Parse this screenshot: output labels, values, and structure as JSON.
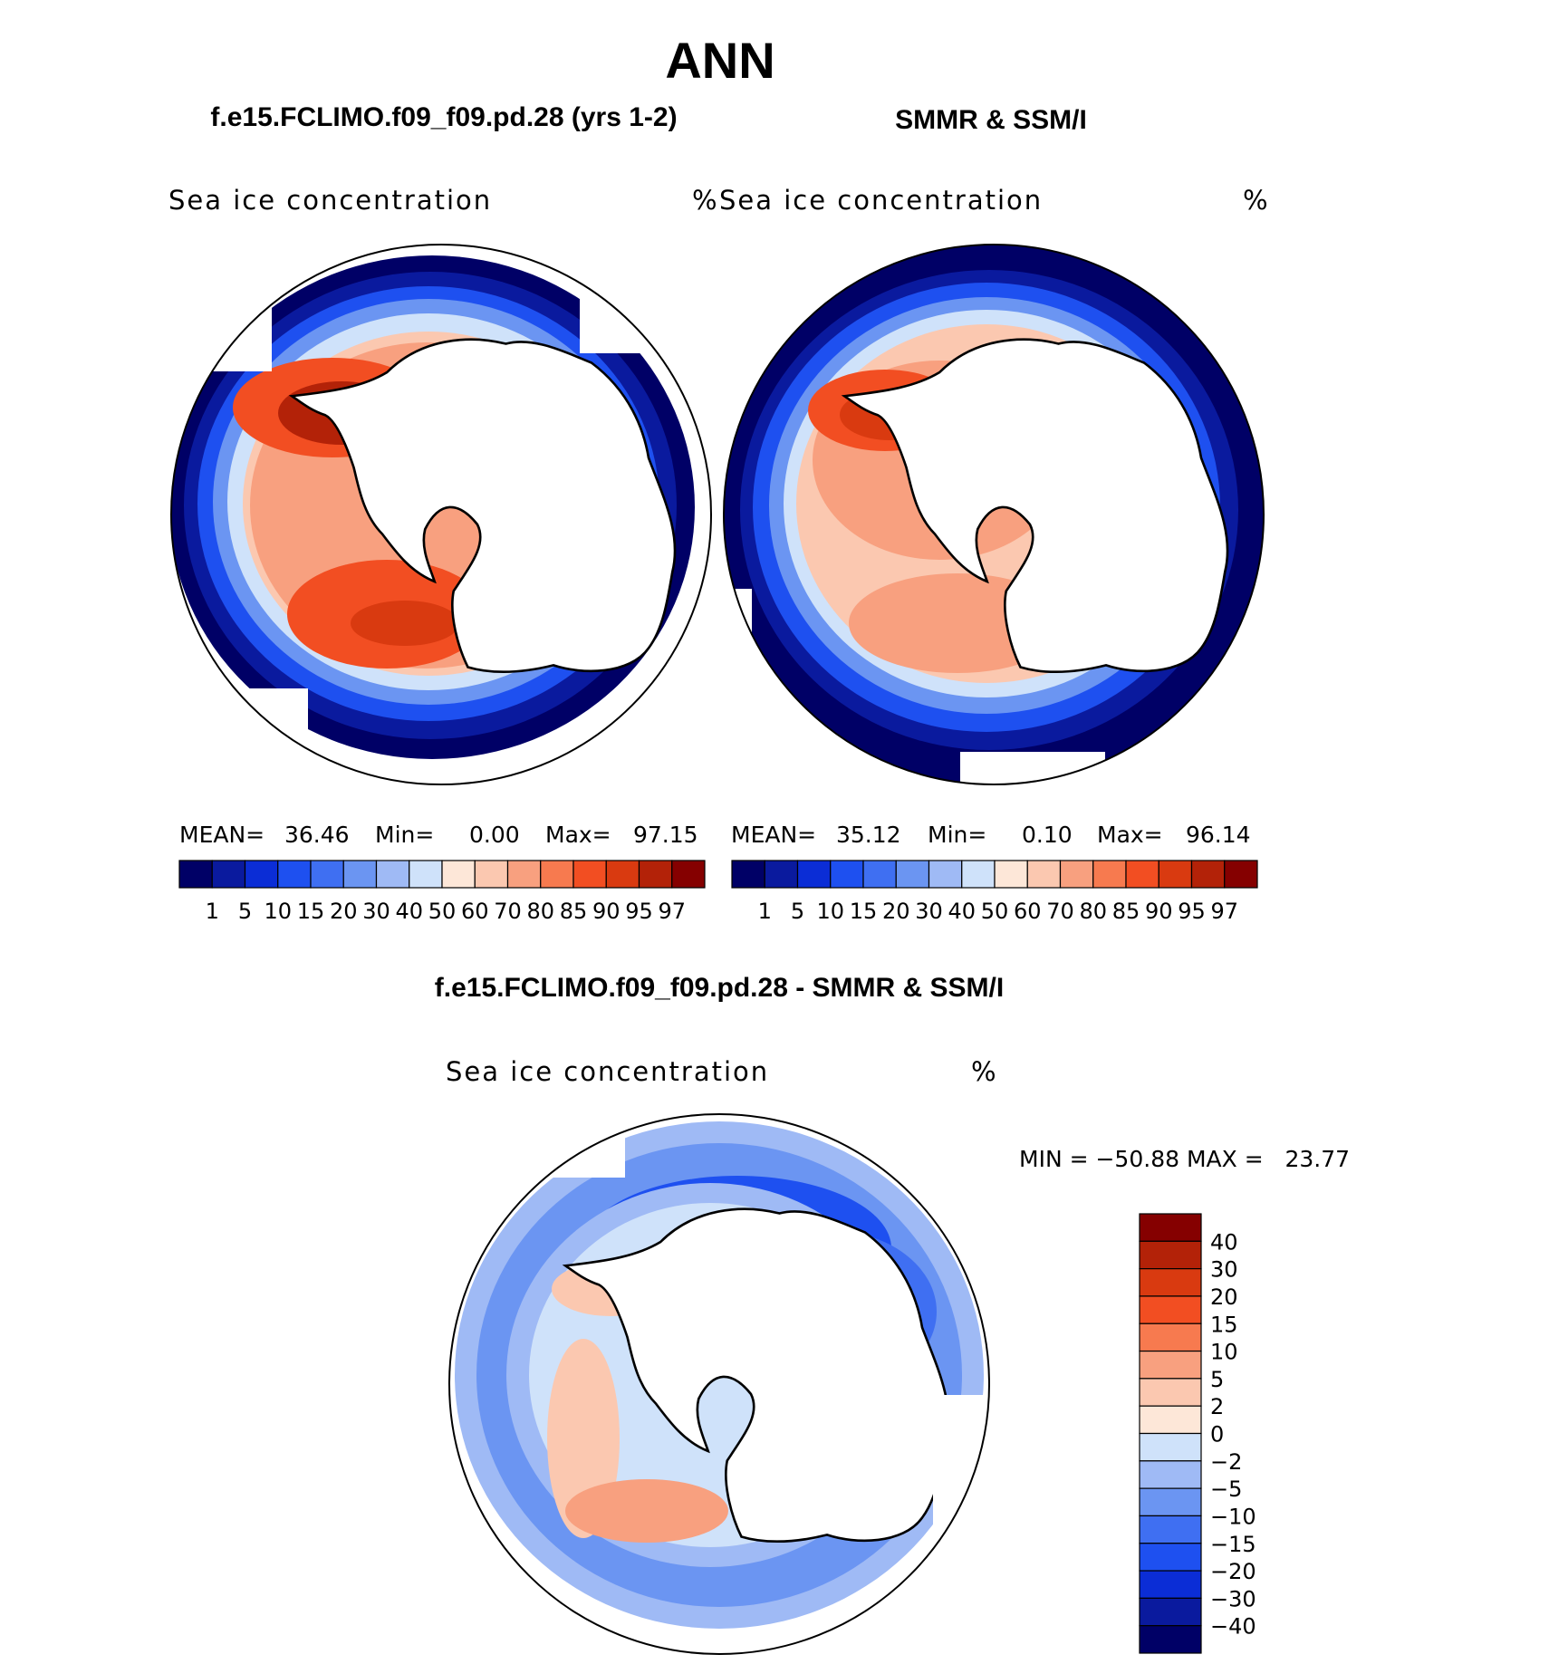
{
  "page_title": "ANN",
  "colors": {
    "ice_scale": [
      "#000066",
      "#0a1a9e",
      "#0b2dd6",
      "#1e50f0",
      "#3f6ff2",
      "#6b95f2",
      "#9fbaf5",
      "#cfe2fa",
      "#fde7d8",
      "#fbc8b0",
      "#f8a07f",
      "#f77a4f",
      "#f24e22",
      "#d93a10",
      "#b32208",
      "#850000"
    ],
    "diff_scale": [
      "#000066",
      "#0a1a9e",
      "#0b2dd6",
      "#1e50f0",
      "#3f6ff2",
      "#6b95f2",
      "#9fbaf5",
      "#cfe2fa",
      "#fde7d8",
      "#fbc8b0",
      "#f8a07f",
      "#f77a4f",
      "#f24e22",
      "#d93a10",
      "#b32208",
      "#850000"
    ],
    "coastline": "#000000"
  },
  "panels": [
    {
      "header": "f.e15.FCLIMO.f09_f09.pd.28 (yrs 1-2)",
      "variable": "Sea ice concentration",
      "units": "%",
      "stats": {
        "mean_label": "MEAN=",
        "mean": "36.46",
        "min_label": "Min=",
        "min": "0.00",
        "max_label": "Max=",
        "max": "97.15"
      },
      "colorbar_labels": [
        "1",
        "5",
        "10",
        "15",
        "20",
        "30",
        "40",
        "50",
        "60",
        "70",
        "80",
        "85",
        "90",
        "95",
        "97"
      ]
    },
    {
      "header": "SMMR & SSM/I",
      "variable": "Sea ice concentration",
      "units": "%",
      "stats": {
        "mean_label": "MEAN=",
        "mean": "35.12",
        "min_label": "Min=",
        "min": "0.10",
        "max_label": "Max=",
        "max": "96.14"
      },
      "colorbar_labels": [
        "1",
        "5",
        "10",
        "15",
        "20",
        "30",
        "40",
        "50",
        "60",
        "70",
        "80",
        "85",
        "90",
        "95",
        "97"
      ]
    }
  ],
  "difference": {
    "header": "f.e15.FCLIMO.f09_f09.pd.28 - SMMR & SSM/I",
    "variable": "Sea ice concentration",
    "units": "%",
    "stats_text": "MIN = −50.88 MAX =   23.77",
    "colorbar_labels": [
      "40",
      "30",
      "20",
      "15",
      "10",
      "5",
      "2",
      "0",
      "−2",
      "−5",
      "−10",
      "−15",
      "−20",
      "−30",
      "−40"
    ]
  }
}
